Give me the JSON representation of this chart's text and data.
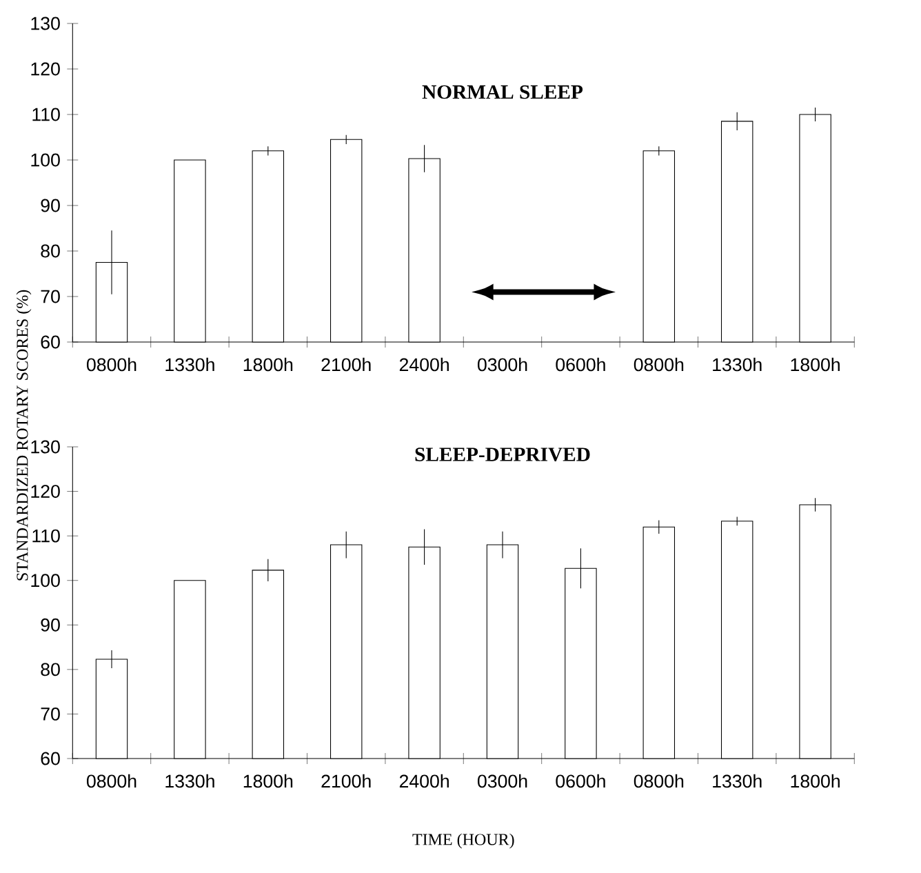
{
  "chart_data": [
    {
      "type": "bar",
      "title": "NORMAL SLEEP",
      "ylabel": "STANDARDIZED ROTARY SCORES (%)",
      "categories": [
        "0800h",
        "1330h",
        "1800h",
        "2100h",
        "2400h",
        "0300h",
        "0600h",
        "0800h",
        "1330h",
        "1800h"
      ],
      "values": [
        77.5,
        100,
        102,
        104.5,
        100.3,
        null,
        null,
        102,
        108.5,
        110
      ],
      "errors": [
        7,
        null,
        1,
        1,
        3,
        null,
        null,
        1,
        2,
        1.5
      ],
      "color": "#ffffff",
      "ylim": [
        60,
        130
      ],
      "yticks": [
        60,
        70,
        80,
        90,
        100,
        110,
        120,
        130
      ]
    },
    {
      "type": "bar",
      "title": "SLEEP-DEPRIVED",
      "xlabel": "TIME (HOUR)",
      "categories": [
        "0800h",
        "1330h",
        "1800h",
        "2100h",
        "2400h",
        "0300h",
        "0600h",
        "0800h",
        "1330h",
        "1800h"
      ],
      "values": [
        82.3,
        100,
        102.3,
        108,
        107.5,
        108,
        102.7,
        112,
        113.3,
        117
      ],
      "errors": [
        2,
        null,
        2.5,
        3,
        4,
        3,
        4.5,
        1.5,
        1,
        1.5
      ],
      "color": "#ffffff",
      "ylim": [
        60,
        130
      ],
      "yticks": [
        60,
        70,
        80,
        90,
        100,
        110,
        120,
        130
      ]
    }
  ]
}
